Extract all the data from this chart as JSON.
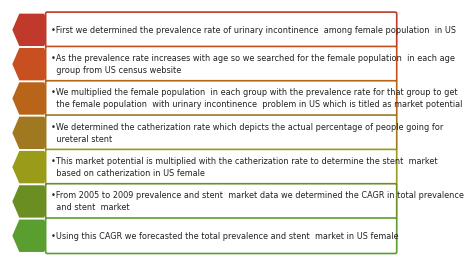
{
  "background_color": "#ffffff",
  "items": [
    {
      "text": "•First we determined the prevalence rate of urinary incontinence  among female population  in US",
      "lines": 1
    },
    {
      "text": "•As the prevalence rate increases with age so we searched for the female population  in each age\n  group from US census website",
      "lines": 2
    },
    {
      "text": "•We multiplied the female population  in each group with the prevalence rate for that group to get\n  the female population  with urinary incontinence  problem in US which is titled as market potential",
      "lines": 2
    },
    {
      "text": "•We determined the catherization rate which depicts the actual percentage of people going for\n  ureteral stent",
      "lines": 2
    },
    {
      "text": "•This market potential is multiplied with the catherization rate to determine the stent  market\n  based on catherization in US female",
      "lines": 2
    },
    {
      "text": "•From 2005 to 2009 prevalence and stent  market data we determined the CAGR in total prevalence\n  and stent  market",
      "lines": 2
    },
    {
      "text": "•Using this CAGR we forecasted the total prevalence and stent  market in US female",
      "lines": 1
    }
  ],
  "arrow_colors": [
    "#C0392B",
    "#C85020",
    "#B8651A",
    "#A07820",
    "#9B9B1A",
    "#6B8E23",
    "#5A9E2F"
  ],
  "border_colors": [
    "#C0392B",
    "#C85020",
    "#B8651A",
    "#A07820",
    "#9B9B1A",
    "#6B8E23",
    "#5A9E2F"
  ]
}
